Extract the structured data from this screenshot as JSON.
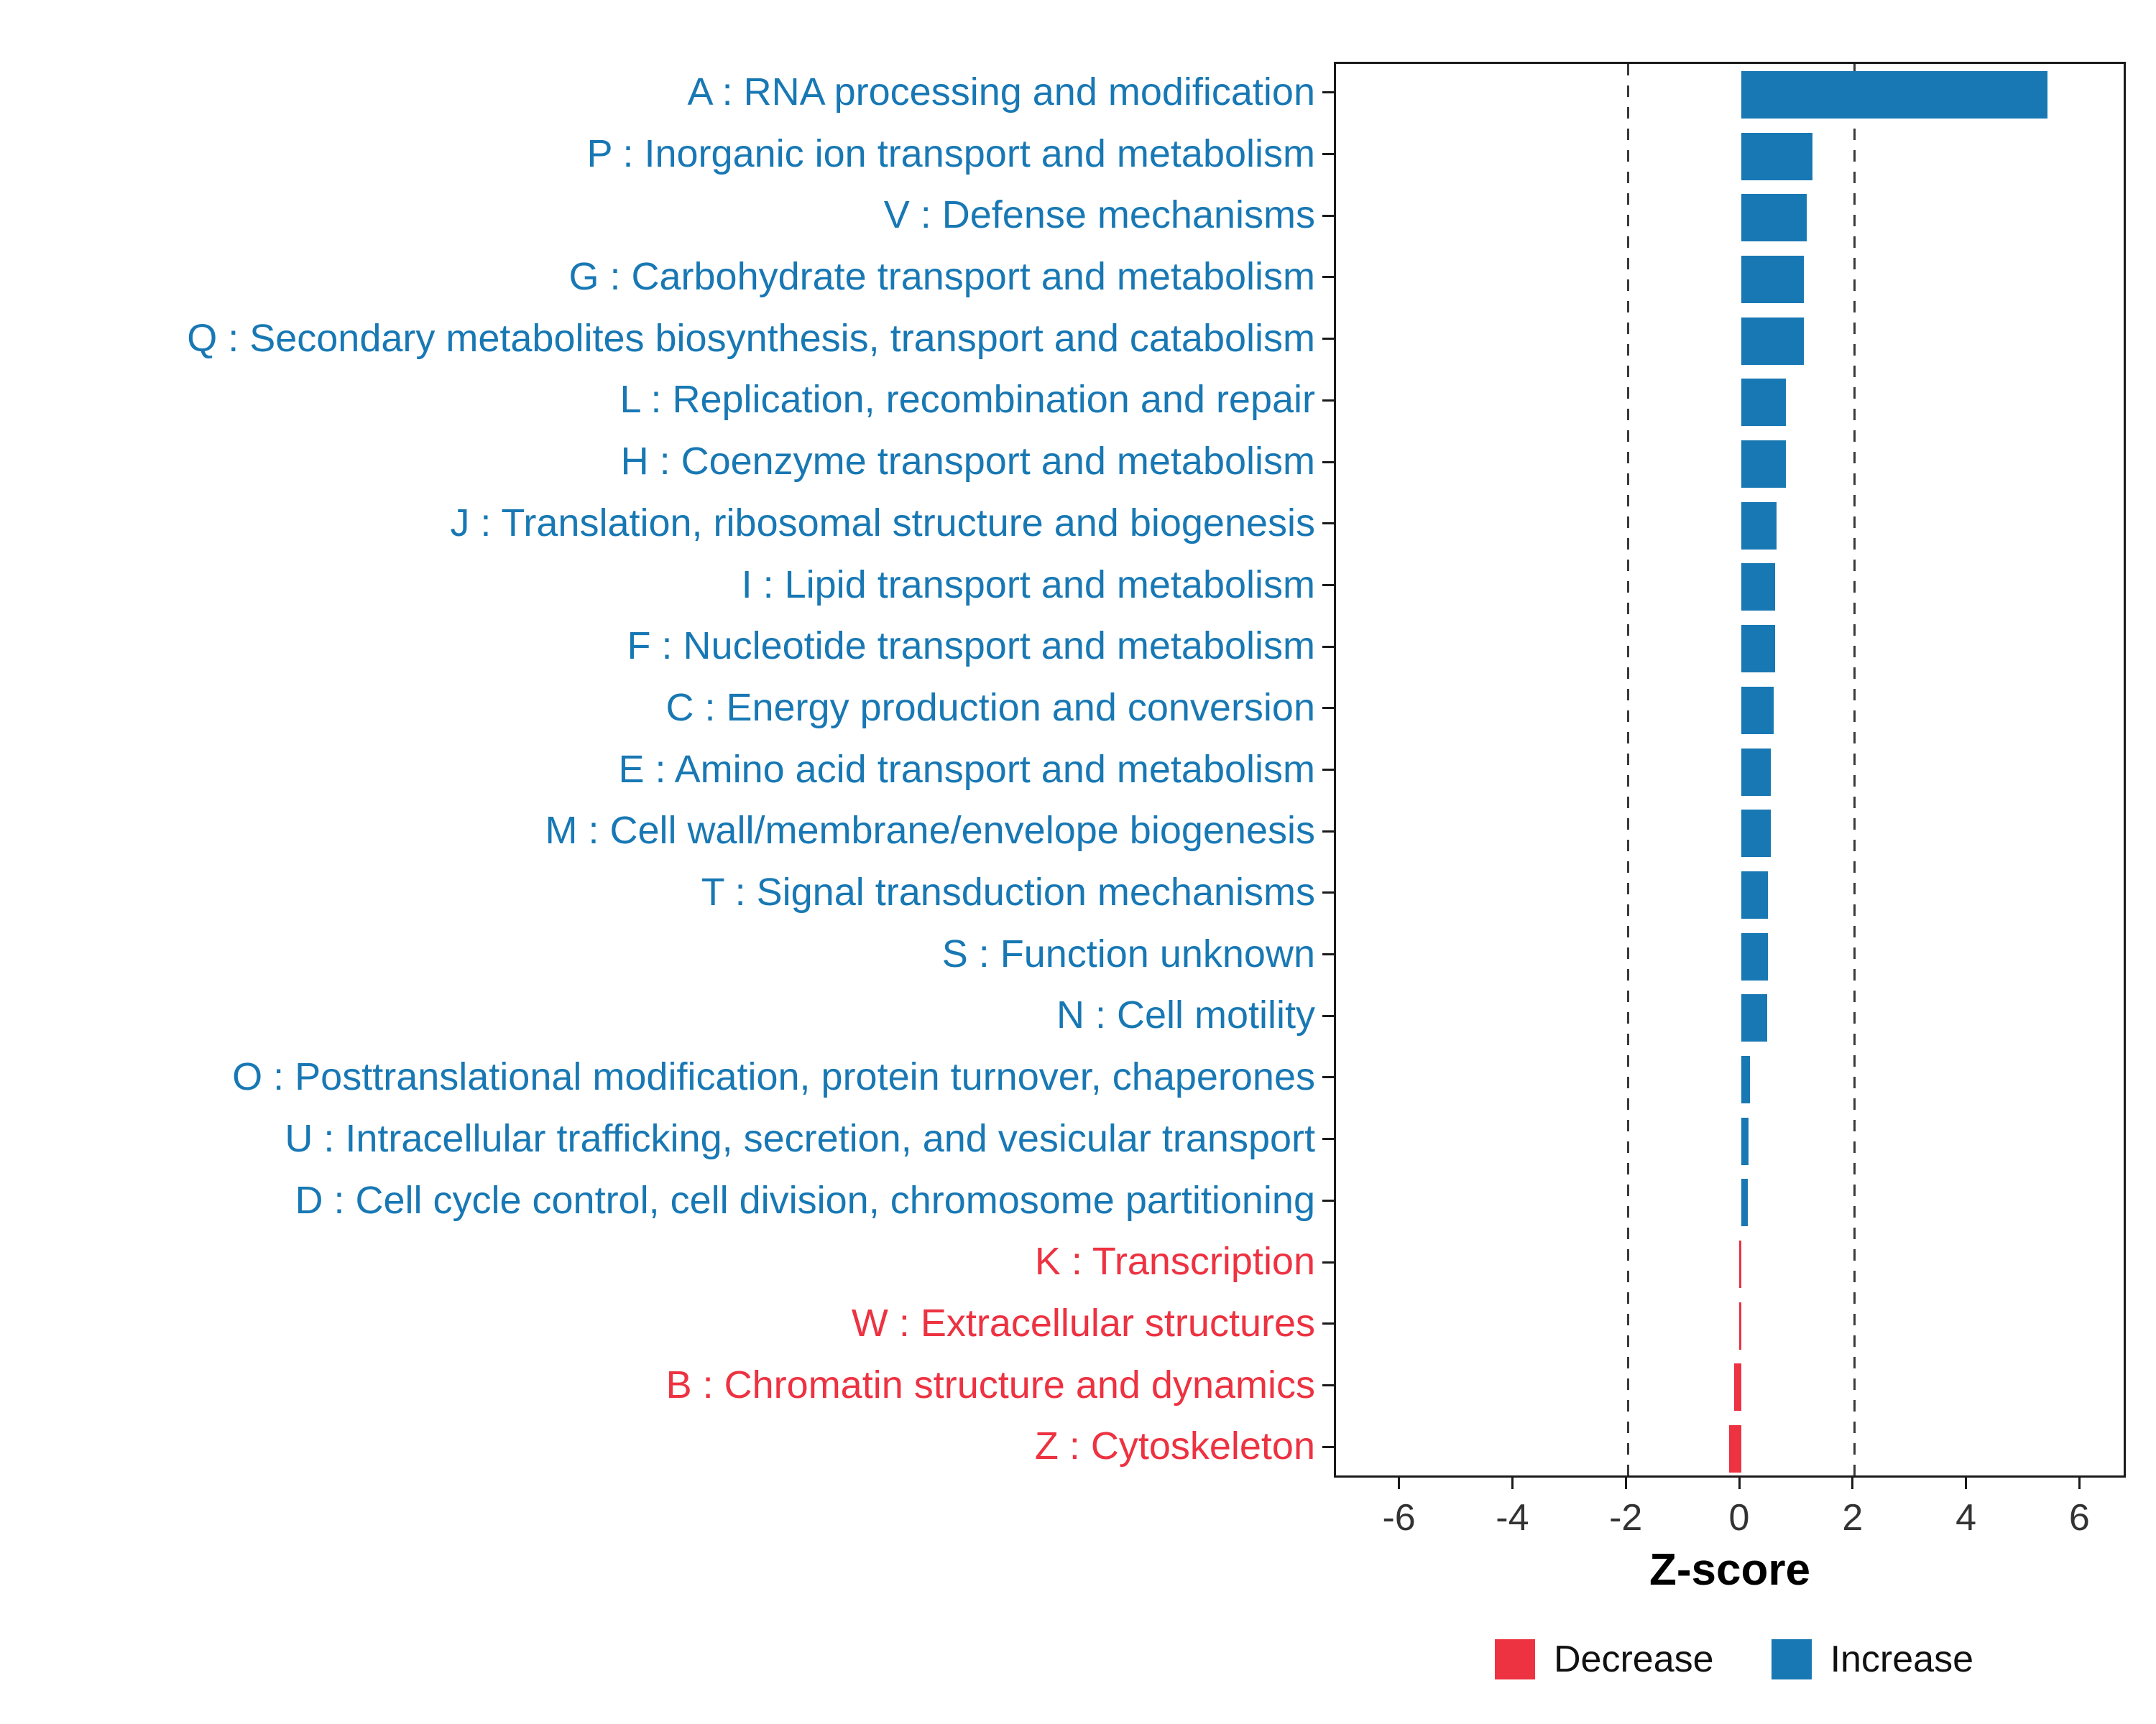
{
  "chart_data": {
    "type": "bar",
    "orientation": "horizontal",
    "title": "",
    "xlabel": "Z-score",
    "ylabel": "",
    "xlim": [
      -7.15,
      6.82
    ],
    "xticks": [
      -6,
      -4,
      -2,
      0,
      2,
      4,
      6
    ],
    "reference_lines": [
      -2,
      2
    ],
    "grid": false,
    "legend_position": "bottom-right",
    "colors": {
      "increase": "#1878B4",
      "decrease": "#ED3241"
    },
    "legend": [
      {
        "label": "Decrease",
        "color": "#ED3241"
      },
      {
        "label": "Increase",
        "color": "#1878B4"
      }
    ],
    "categories": [
      {
        "label": "A : RNA processing and modification",
        "value": 5.4,
        "direction": "Increase"
      },
      {
        "label": "P : Inorganic ion transport and metabolism",
        "value": 1.25,
        "direction": "Increase"
      },
      {
        "label": "V : Defense mechanisms",
        "value": 1.15,
        "direction": "Increase"
      },
      {
        "label": "G : Carbohydrate transport and metabolism",
        "value": 1.1,
        "direction": "Increase"
      },
      {
        "label": "Q : Secondary metabolites biosynthesis, transport and catabolism",
        "value": 1.1,
        "direction": "Increase"
      },
      {
        "label": "L : Replication, recombination and repair",
        "value": 0.78,
        "direction": "Increase"
      },
      {
        "label": "H : Coenzyme transport and metabolism",
        "value": 0.78,
        "direction": "Increase"
      },
      {
        "label": "J : Translation, ribosomal structure and biogenesis",
        "value": 0.62,
        "direction": "Increase"
      },
      {
        "label": "I : Lipid transport and metabolism",
        "value": 0.6,
        "direction": "Increase"
      },
      {
        "label": "F : Nucleotide transport and metabolism",
        "value": 0.6,
        "direction": "Increase"
      },
      {
        "label": "C : Energy production and conversion",
        "value": 0.57,
        "direction": "Increase"
      },
      {
        "label": "E : Amino acid transport and metabolism",
        "value": 0.52,
        "direction": "Increase"
      },
      {
        "label": "M : Cell wall/membrane/envelope biogenesis",
        "value": 0.52,
        "direction": "Increase"
      },
      {
        "label": "T : Signal transduction mechanisms",
        "value": 0.47,
        "direction": "Increase"
      },
      {
        "label": "S : Function unknown",
        "value": 0.47,
        "direction": "Increase"
      },
      {
        "label": "N : Cell motility",
        "value": 0.45,
        "direction": "Increase"
      },
      {
        "label": "O : Posttranslational modification, protein turnover, chaperones",
        "value": 0.15,
        "direction": "Increase"
      },
      {
        "label": "U : Intracellular trafficking, secretion, and vesicular transport",
        "value": 0.13,
        "direction": "Increase"
      },
      {
        "label": "D : Cell cycle control, cell division, chromosome partitioning",
        "value": 0.12,
        "direction": "Increase"
      },
      {
        "label": "K : Transcription",
        "value": -0.04,
        "direction": "Decrease"
      },
      {
        "label": "W : Extracellular structures",
        "value": -0.04,
        "direction": "Decrease"
      },
      {
        "label": "B : Chromatin structure and dynamics",
        "value": -0.13,
        "direction": "Decrease"
      },
      {
        "label": "Z : Cytoskeleton",
        "value": -0.22,
        "direction": "Decrease"
      }
    ]
  }
}
